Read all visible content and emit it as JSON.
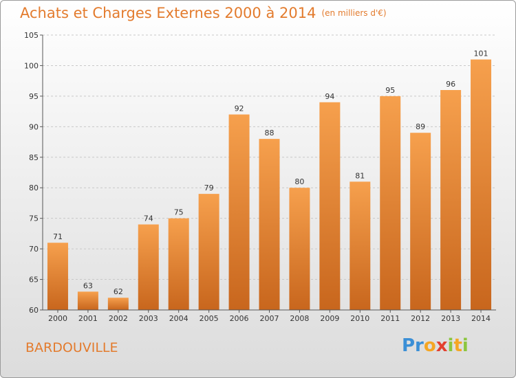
{
  "title": "Achats et Charges Externes 2000 à 2014",
  "unit_label": "(en milliers d'€)",
  "location": "BARDOUVILLE",
  "logo": "Proxiti",
  "colors": {
    "accent": "#e37b2d",
    "bar_top": "#f6a04d",
    "bar_bottom": "#c8661d",
    "axis": "#555555",
    "grid": "#c8c8c8"
  },
  "chart_data": {
    "type": "bar",
    "title": "Achats et Charges Externes 2000 à 2014",
    "categories": [
      "2000",
      "2001",
      "2002",
      "2003",
      "2004",
      "2005",
      "2006",
      "2007",
      "2008",
      "2009",
      "2010",
      "2011",
      "2012",
      "2013",
      "2014"
    ],
    "values": [
      71,
      63,
      62,
      74,
      75,
      79,
      92,
      88,
      80,
      94,
      81,
      95,
      89,
      96,
      101
    ],
    "ylim": [
      60,
      105
    ],
    "yticks": [
      60,
      65,
      70,
      75,
      80,
      85,
      90,
      95,
      100,
      105
    ],
    "grid": true,
    "data_labels": true
  }
}
